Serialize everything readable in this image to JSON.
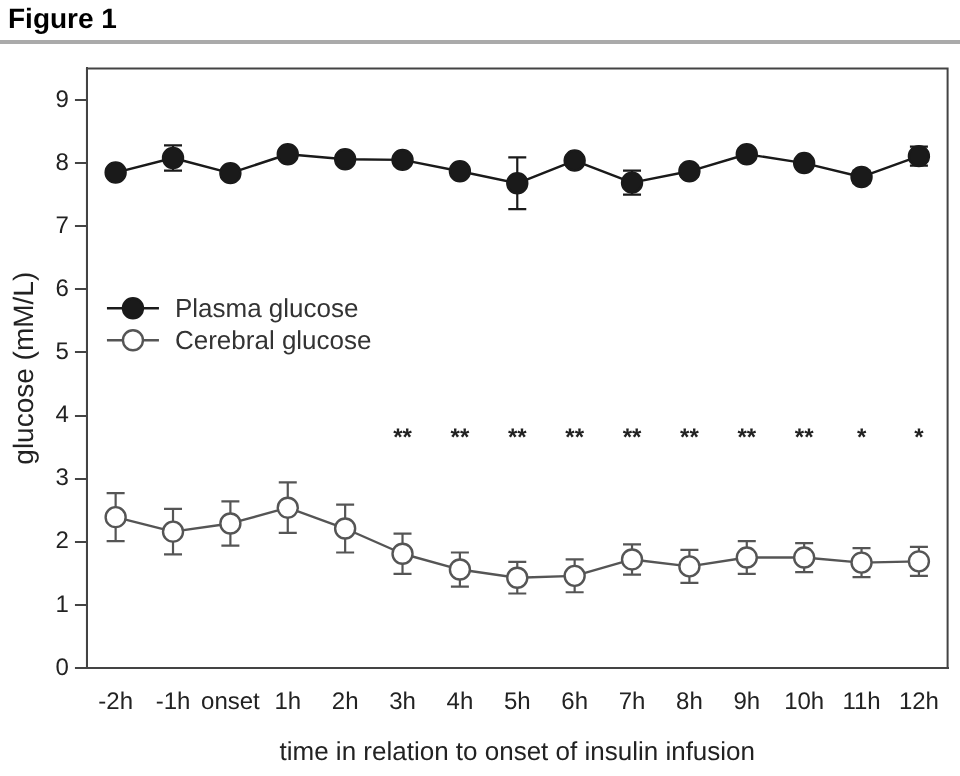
{
  "chart_data": {
    "type": "line",
    "title": "Figure 1",
    "xlabel": "time in relation to onset of insulin infusion",
    "ylabel": "glucose (mM/L)",
    "categories": [
      "-2h",
      "-1h",
      "onset",
      "1h",
      "2h",
      "3h",
      "4h",
      "5h",
      "6h",
      "7h",
      "8h",
      "9h",
      "10h",
      "11h",
      "12h"
    ],
    "series": [
      {
        "name": "Plasma glucose",
        "color": "#1a1a1a",
        "marker": "circle",
        "values": [
          7.85,
          8.08,
          7.84,
          8.14,
          8.06,
          8.05,
          7.87,
          7.68,
          8.04,
          7.69,
          7.87,
          8.14,
          8.0,
          7.78,
          8.11
        ],
        "errors": [
          0.07,
          0.2,
          0.07,
          0.07,
          0.07,
          0.07,
          0.08,
          0.41,
          0.08,
          0.19,
          0.09,
          0.09,
          0.08,
          0.1,
          0.15
        ]
      },
      {
        "name": "Cerebral glucose",
        "color": "#555555",
        "marker": "circle",
        "values": [
          2.39,
          2.16,
          2.29,
          2.54,
          2.21,
          1.81,
          1.56,
          1.43,
          1.46,
          1.72,
          1.61,
          1.75,
          1.75,
          1.67,
          1.69
        ],
        "errors": [
          0.38,
          0.36,
          0.35,
          0.4,
          0.38,
          0.32,
          0.27,
          0.25,
          0.26,
          0.24,
          0.26,
          0.26,
          0.23,
          0.23,
          0.23
        ]
      }
    ],
    "ylim": [
      0,
      9.5
    ],
    "yticks": [
      0,
      1,
      2,
      3,
      4,
      5,
      6,
      7,
      8,
      9
    ],
    "grid": false,
    "legend": "left",
    "annotations": [
      "**",
      "**",
      "**",
      "**",
      "**",
      "**",
      "**",
      "**",
      "*",
      "*"
    ]
  }
}
